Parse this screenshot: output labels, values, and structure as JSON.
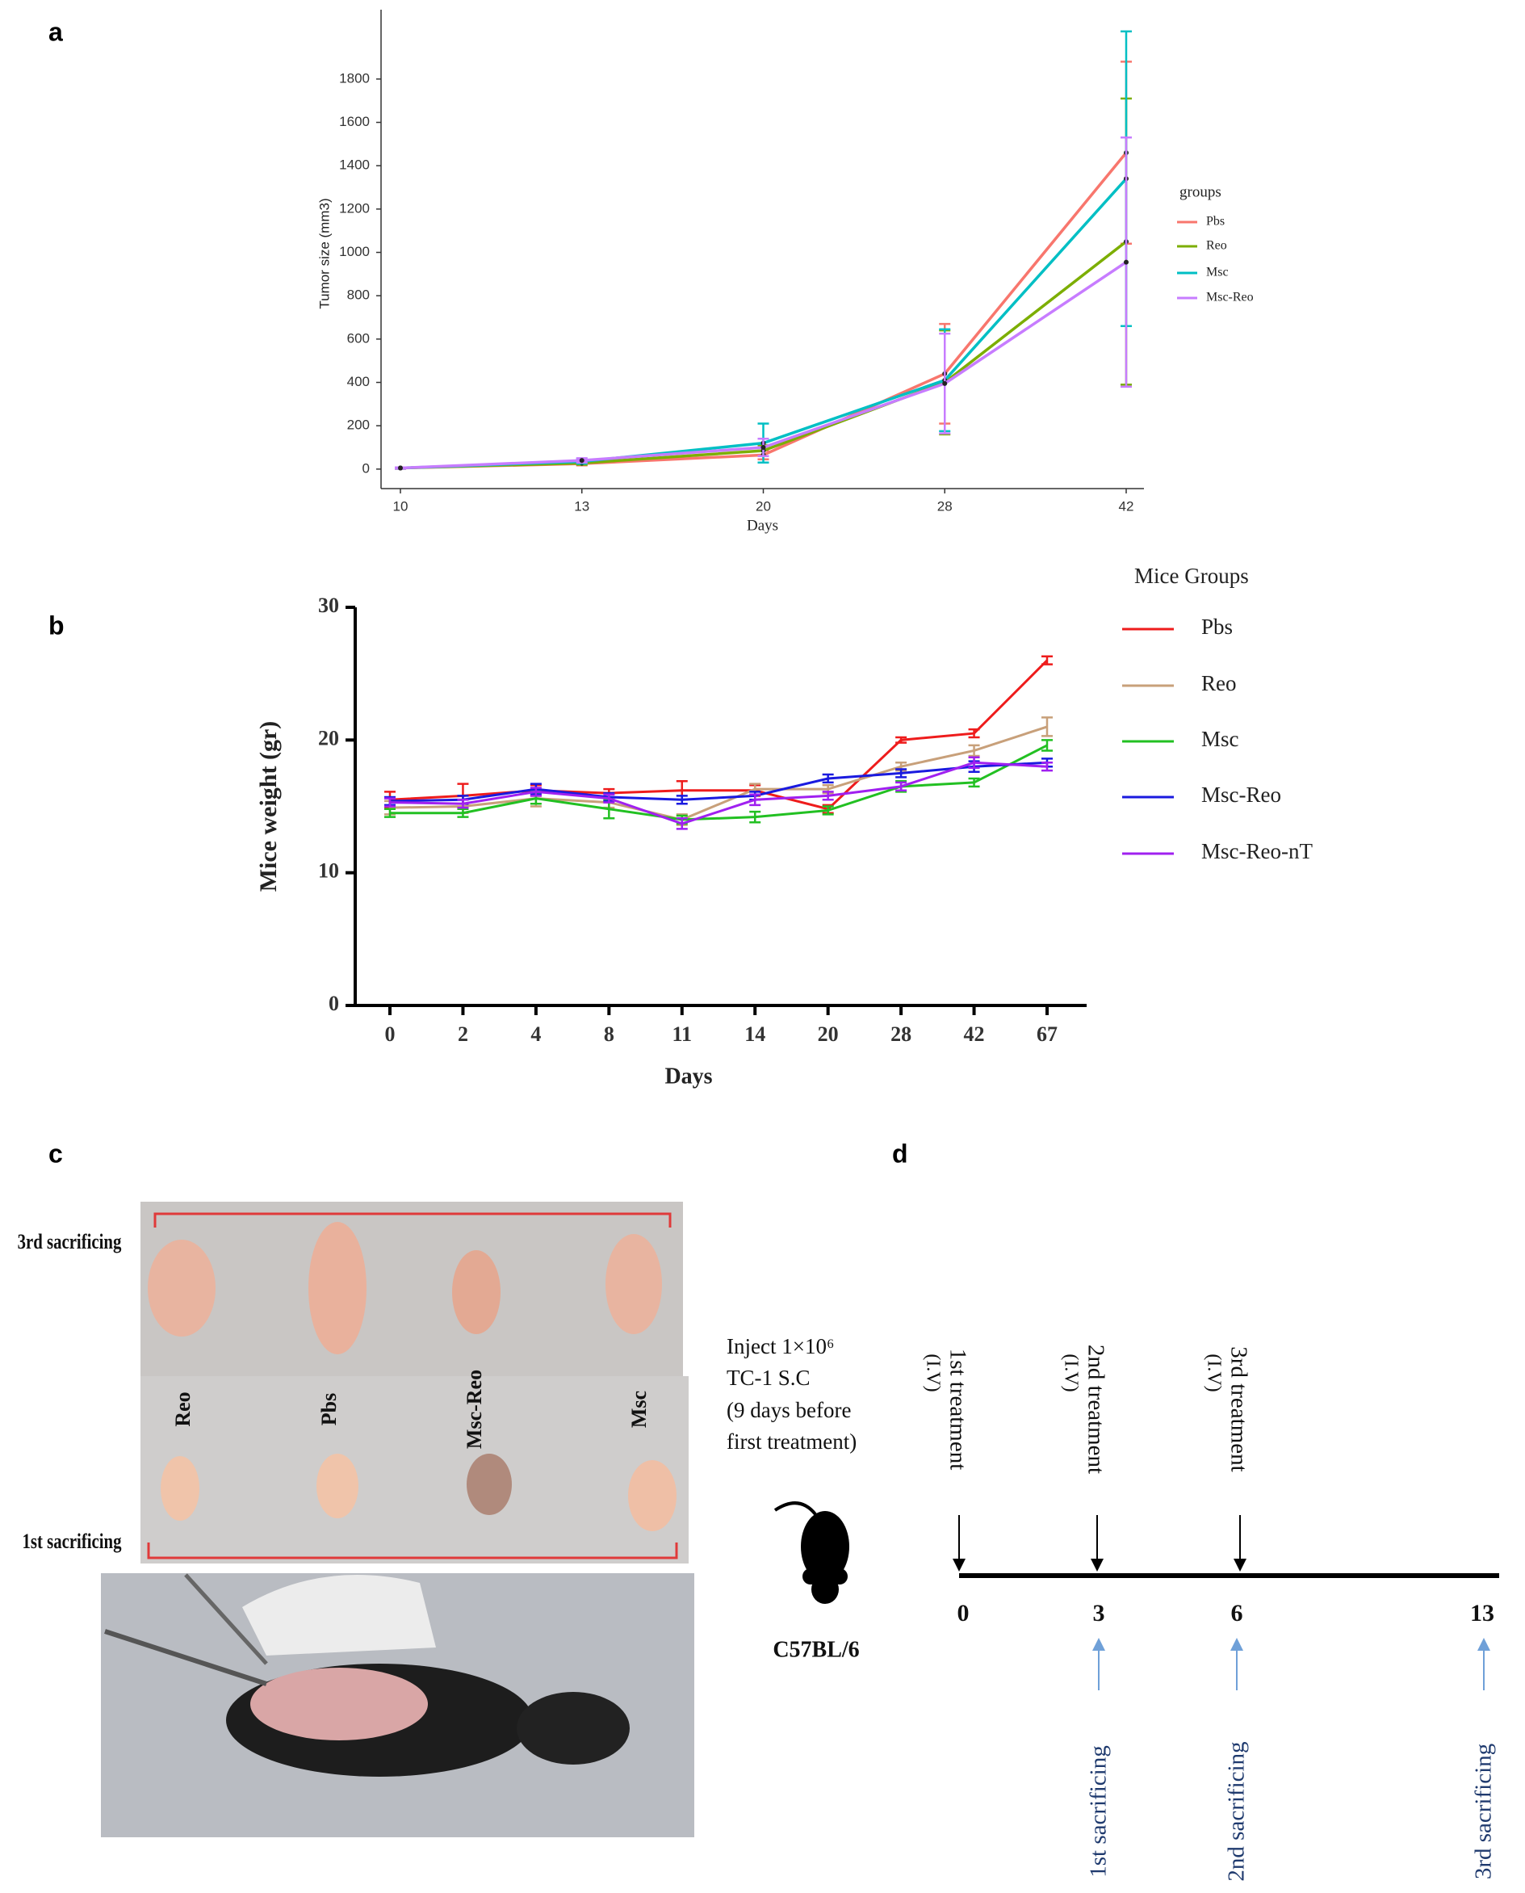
{
  "panel_labels": [
    "a",
    "b",
    "c",
    "d"
  ],
  "chart_data": [
    {
      "type": "line",
      "x_label": "Days",
      "y_label": "Tumor size (mm3)",
      "legend_title": "groups",
      "legend": "right",
      "grid": false,
      "categories": [
        "10",
        "13",
        "20",
        "28",
        "42"
      ],
      "ylim": [
        -90,
        2120
      ],
      "yticks": [
        0,
        200,
        400,
        600,
        800,
        1000,
        1200,
        1400,
        1600,
        1800
      ],
      "series": [
        {
          "name": "Pbs",
          "color": "#f8766d",
          "values": [
            5,
            25,
            65,
            440,
            1460
          ],
          "errors": [
            3,
            8,
            20,
            230,
            420
          ]
        },
        {
          "name": "Reo",
          "color": "#7cae00",
          "values": [
            5,
            28,
            85,
            400,
            1050
          ],
          "errors": [
            3,
            8,
            25,
            240,
            660
          ]
        },
        {
          "name": "Msc",
          "color": "#00bfc4",
          "values": [
            5,
            35,
            120,
            410,
            1340
          ],
          "errors": [
            3,
            10,
            90,
            235,
            680
          ]
        },
        {
          "name": "Msc-Reo",
          "color": "#c77cff",
          "values": [
            5,
            40,
            100,
            395,
            955
          ],
          "errors": [
            3,
            10,
            40,
            230,
            575
          ]
        }
      ]
    },
    {
      "type": "line",
      "x_label": "Days",
      "y_label": "Mice weight (gr)",
      "legend_title": "Mice Groups",
      "legend": "right",
      "grid": false,
      "categories": [
        "0",
        "2",
        "4",
        "8",
        "11",
        "14",
        "20",
        "28",
        "42",
        "67"
      ],
      "ylim": [
        0,
        30
      ],
      "yticks": [
        0,
        10,
        20,
        30
      ],
      "series": [
        {
          "name": "Pbs",
          "color": "#ee1c1c",
          "values": [
            15.5,
            15.8,
            16.2,
            16.0,
            16.2,
            16.2,
            14.8,
            20.0,
            20.5,
            26.0
          ],
          "errors": [
            0.6,
            0.9,
            0.4,
            0.3,
            0.7,
            0.4,
            0.3,
            0.2,
            0.3,
            0.3
          ]
        },
        {
          "name": "Reo",
          "color": "#c8a07a",
          "values": [
            14.9,
            15.0,
            15.6,
            15.3,
            14.0,
            16.3,
            16.3,
            18.0,
            19.2,
            21.0
          ],
          "errors": [
            0.5,
            0.5,
            0.6,
            0.4,
            0.4,
            0.4,
            0.3,
            0.3,
            0.4,
            0.7
          ]
        },
        {
          "name": "Msc",
          "color": "#22c022",
          "values": [
            14.5,
            14.5,
            15.6,
            14.8,
            14.0,
            14.2,
            14.7,
            16.5,
            16.8,
            19.6
          ],
          "errors": [
            0.3,
            0.3,
            0.4,
            0.7,
            0.3,
            0.4,
            0.3,
            0.4,
            0.3,
            0.4
          ]
        },
        {
          "name": "Msc-Reo",
          "color": "#1a1adf",
          "values": [
            15.4,
            15.5,
            16.3,
            15.7,
            15.5,
            15.8,
            17.1,
            17.5,
            18.0,
            18.3
          ],
          "errors": [
            0.3,
            0.3,
            0.4,
            0.3,
            0.3,
            0.3,
            0.3,
            0.3,
            0.4,
            0.3
          ]
        },
        {
          "name": "Msc-Reo-nT",
          "color": "#a020f0",
          "values": [
            15.3,
            15.2,
            16.1,
            15.6,
            13.7,
            15.5,
            15.8,
            16.5,
            18.3,
            18.0
          ],
          "errors": [
            0.3,
            0.3,
            0.3,
            0.3,
            0.4,
            0.4,
            0.3,
            0.3,
            0.4,
            0.3
          ]
        }
      ]
    }
  ],
  "photo": {
    "row_labels": [
      "3rd sacrificing",
      "1st sacrificing"
    ],
    "group_labels": [
      "Reo",
      "Pbs",
      "Msc-Reo",
      "Msc"
    ]
  },
  "injection": {
    "lines": [
      "Inject 1×10⁶",
      "TC-1 S.C",
      "(9 days before",
      "first treatment)"
    ],
    "strain": "C57BL/6"
  },
  "timeline": {
    "days": [
      "0",
      "3",
      "6",
      "13"
    ],
    "treatments": [
      {
        "label": "1st treatment",
        "route": "(I.V)"
      },
      {
        "label": "2nd treatment",
        "route": "(I.V)"
      },
      {
        "label": "3rd treatment",
        "route": "(I.V)"
      }
    ],
    "sacrificings": [
      "1st sacrificing",
      "2nd sacrificing",
      "3rd sacrificing"
    ]
  }
}
